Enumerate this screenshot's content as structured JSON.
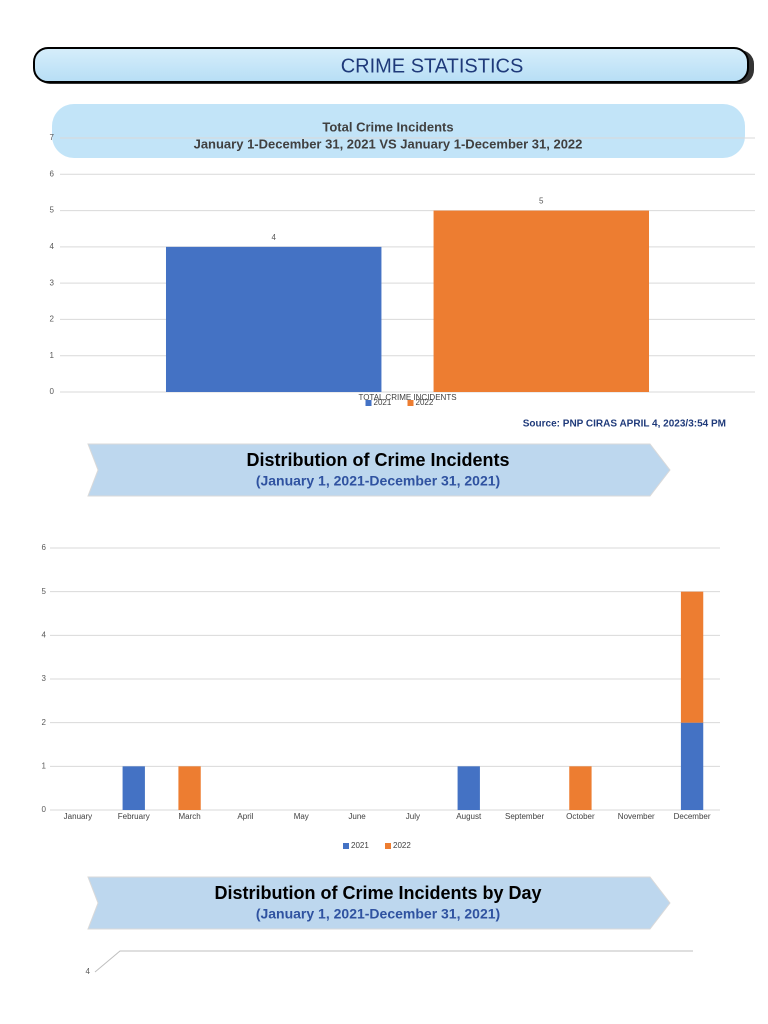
{
  "header": {
    "title": "CRIME STATISTICS"
  },
  "chart_data": [
    {
      "type": "bar",
      "title": "Total Crime Incidents",
      "subtitle": "January 1-December 31, 2021 VS January 1-December 31, 2022",
      "categories": [
        "TOTAL CRIME INCIDENTS"
      ],
      "series": [
        {
          "name": "2021",
          "color": "#4472c4",
          "values": [
            4
          ]
        },
        {
          "name": "2022",
          "color": "#ed7d31",
          "values": [
            5
          ]
        }
      ],
      "ylim": [
        0,
        7
      ],
      "yticks": [
        0,
        1,
        2,
        3,
        4,
        5,
        6,
        7
      ],
      "grid": true,
      "legend": "bottom",
      "data_labels": true,
      "source": "Source: PNP CIRAS APRIL 4, 2023/3:54 PM"
    },
    {
      "type": "bar",
      "stacked": true,
      "title": "Distribution of Crime Incidents",
      "subtitle": "(January 1, 2021-December 31, 2021)",
      "categories": [
        "January",
        "February",
        "March",
        "April",
        "May",
        "June",
        "July",
        "August",
        "September",
        "October",
        "November",
        "December"
      ],
      "series": [
        {
          "name": "2021",
          "color": "#4472c4",
          "values": [
            0,
            1,
            0,
            0,
            0,
            0,
            0,
            1,
            0,
            0,
            0,
            2
          ]
        },
        {
          "name": "2022",
          "color": "#ed7d31",
          "values": [
            0,
            0,
            1,
            0,
            0,
            0,
            0,
            0,
            0,
            1,
            0,
            3
          ]
        }
      ],
      "ylim": [
        0,
        6
      ],
      "yticks": [
        0,
        1,
        2,
        3,
        4,
        5,
        6
      ],
      "grid": true,
      "legend": "bottom"
    },
    {
      "type": "bar",
      "title": "Distribution of Crime Incidents by Day",
      "subtitle": "(January 1, 2021-December 31, 2021)",
      "ylim": [
        0,
        4
      ],
      "yticks": [
        4
      ],
      "grid": true
    }
  ]
}
